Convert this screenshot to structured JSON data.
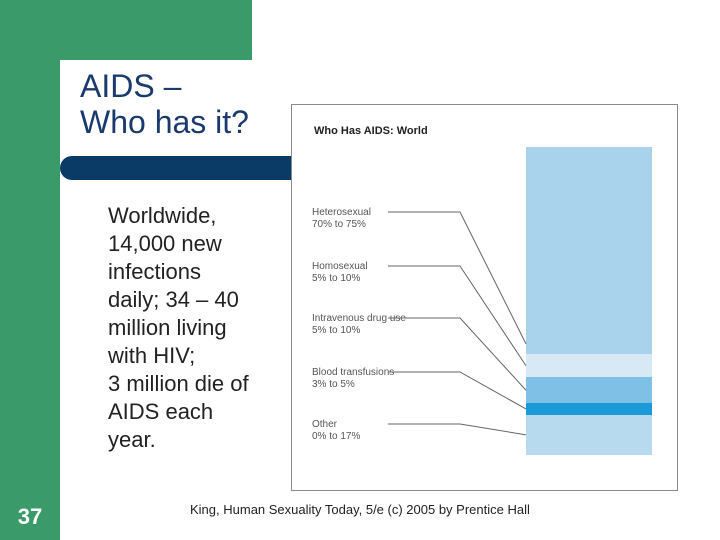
{
  "slide": {
    "title_lines": [
      "AIDS –",
      "Who has it?"
    ],
    "body_lines": [
      "Worldwide,",
      "14,000 new",
      "infections",
      "daily; 34 – 40",
      "million living",
      "with HIV;",
      "3 million die of",
      "AIDS each",
      "year."
    ],
    "slide_number": "37",
    "credit": "King, Human Sexuality Today, 5/e (c) 2005 by Prentice Hall",
    "colors": {
      "green": "#3a9a6a",
      "navy": "#0a3a66",
      "title": "#1a3a6e"
    }
  },
  "chart_data": {
    "type": "stacked-bar",
    "title": "Who Has AIDS: World",
    "categories": [
      {
        "name": "Heterosexual",
        "range_label": "70% to 75%",
        "range": [
          70,
          75
        ],
        "shown_share": 72,
        "color": "#a9d3ec"
      },
      {
        "name": "Homosexual",
        "range_label": "5% to 10%",
        "range": [
          5,
          10
        ],
        "shown_share": 8,
        "color": "#d6e9f5"
      },
      {
        "name": "Intravenous drug use",
        "range_label": "5% to 10%",
        "range": [
          5,
          10
        ],
        "shown_share": 9,
        "color": "#7fc0e6"
      },
      {
        "name": "Blood transfusions",
        "range_label": "3% to 5%",
        "range": [
          3,
          5
        ],
        "shown_share": 4,
        "color": "#1a9ad6"
      },
      {
        "name": "Other",
        "range_label": "0% to 17%",
        "range": [
          0,
          17
        ],
        "shown_share": 14,
        "color": "#b7daee"
      }
    ]
  }
}
